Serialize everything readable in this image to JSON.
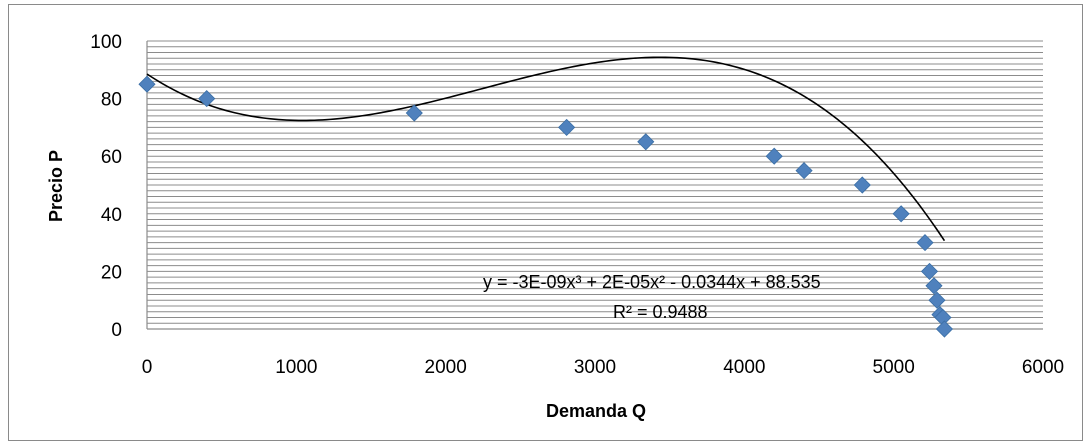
{
  "chart_data": {
    "type": "scatter",
    "title": "",
    "xlabel": "Demanda Q",
    "ylabel": "Precio P",
    "xlim": [
      0,
      6000
    ],
    "ylim": [
      0,
      100
    ],
    "x_ticks": [
      "0",
      "1000",
      "2000",
      "3000",
      "4000",
      "5000",
      "6000"
    ],
    "y_ticks": [
      "0",
      "20",
      "40",
      "60",
      "80",
      "100"
    ],
    "grid": "horizontal minor every 2",
    "marker": "diamond",
    "marker_color": "#4f81bd",
    "series": [
      {
        "x": [
          0,
          400,
          1790,
          2810,
          3340,
          4200,
          4400,
          4790,
          5050,
          5210,
          5240,
          5270,
          5290,
          5310,
          5330,
          5340
        ],
        "y": [
          85,
          80,
          75,
          70,
          65,
          60,
          55,
          50,
          40,
          30,
          20,
          15,
          10,
          5,
          4,
          0
        ]
      }
    ],
    "trendline": {
      "type": "polynomial",
      "coefficients": [
        -3.2e-09,
        2.15e-05,
        -0.0344,
        88.535
      ],
      "x_range": [
        0,
        5340
      ],
      "color": "#000000",
      "equation": "y = -3E-09x³ + 2E-05x² - 0.0344x + 88.535",
      "r_squared": "R² = 0.9488"
    }
  }
}
